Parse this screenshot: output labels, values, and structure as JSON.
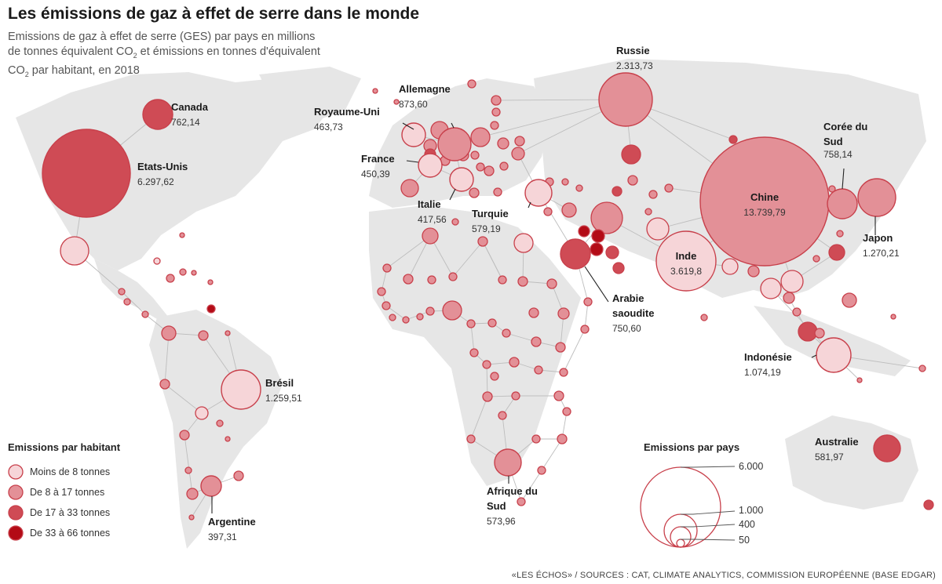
{
  "title": "Les émissions de gaz à effet de serre dans le monde",
  "subtitle_line1": "Emissions de gaz à effet de serre (GES) par pays en millions",
  "subtitle_line2": "de tonnes équivalent CO",
  "subtitle_sub": "2",
  "subtitle_line2b": " et émissions en tonnes d'équivalent",
  "subtitle_line3a": "CO",
  "subtitle_line3b": " par habitant, en 2018",
  "source": "«LES ÉCHOS» / SOURCES : CAT, CLIMATE ANALYTICS, COMMISSION EUROPÉENNE (BASE EDGAR)",
  "colors": {
    "land": "#e6e6e6",
    "cat1": "#f6d5d8",
    "cat2": "#e39097",
    "cat3": "#cf4b55",
    "cat4": "#b30b16",
    "stroke": "#c8404b",
    "line": "#bdbdbd"
  },
  "legend_per_capita": {
    "title": "Emissions par habitant",
    "items": [
      {
        "label": "Moins de 8 tonnes",
        "category": 1
      },
      {
        "label": "De 8 à 17 tonnes",
        "category": 2
      },
      {
        "label": "De 17 à 33 tonnes",
        "category": 3
      },
      {
        "label": "De 33 à 66 tonnes",
        "category": 4
      }
    ]
  },
  "legend_size": {
    "title": "Emissions par pays",
    "values": [
      "6.000",
      "1.000",
      "400",
      "50"
    ]
  },
  "countries": [
    {
      "name": "Canada",
      "value": "762,14",
      "category": 3
    },
    {
      "name": "Etats-Unis",
      "value": "6.297,62",
      "category": 3
    },
    {
      "name": "Russie",
      "value": "2.313,73",
      "category": 2
    },
    {
      "name": "Allemagne",
      "value": "873,60",
      "category": 2
    },
    {
      "name": "Royaume-Uni",
      "value": "463,73",
      "category": 1
    },
    {
      "name": "France",
      "value": "450,39",
      "category": 1
    },
    {
      "name": "Italie",
      "value": "417,56",
      "category": 1
    },
    {
      "name": "Turquie",
      "value": "579,19",
      "category": 1
    },
    {
      "name": "Chine",
      "value": "13.739,79",
      "category": 2
    },
    {
      "name": "Corée du Sud",
      "value": "758,14",
      "category": 2
    },
    {
      "name": "Japon",
      "value": "1.270,21",
      "category": 2
    },
    {
      "name": "Inde",
      "value": "3.619,8",
      "category": 1
    },
    {
      "name": "Arabie saoudite",
      "value": "750,60",
      "category": 3
    },
    {
      "name": "Indonésie",
      "value": "1.074,19",
      "category": 1
    },
    {
      "name": "Brésil",
      "value": "1.259,51",
      "category": 1
    },
    {
      "name": "Argentine",
      "value": "397,31",
      "category": 2
    },
    {
      "name": "Afrique du Sud",
      "value": "573,96",
      "category": 2
    },
    {
      "name": "Australie",
      "value": "581,97",
      "category": 3
    }
  ]
}
